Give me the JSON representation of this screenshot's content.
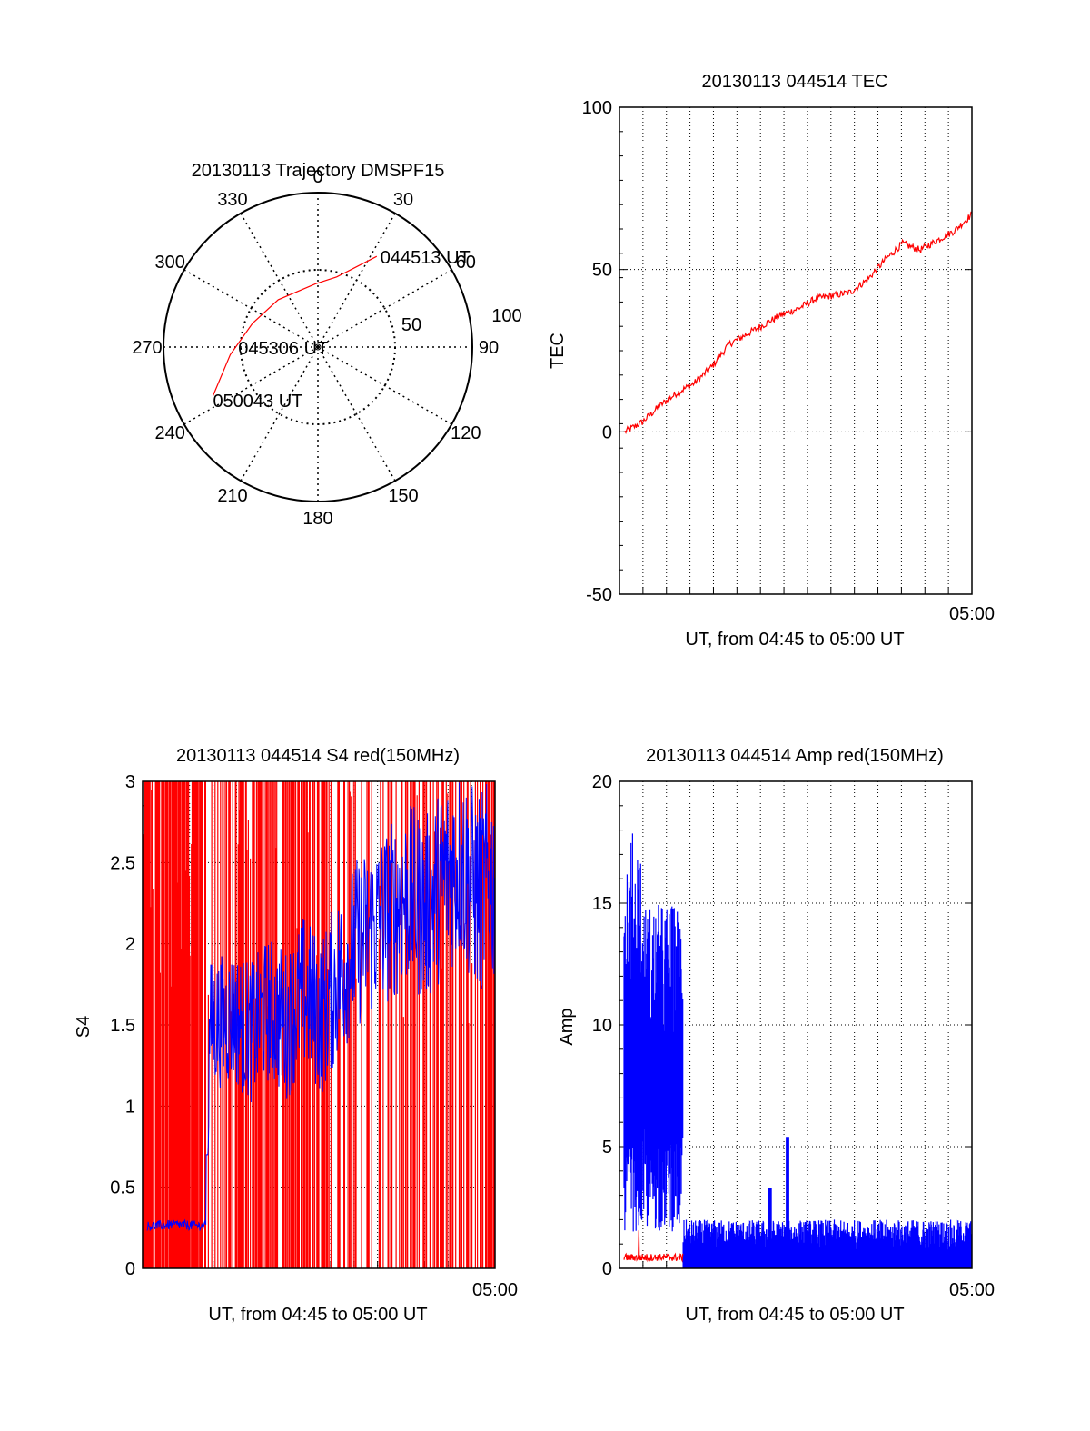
{
  "chart_data": [
    {
      "type": "polar",
      "title": "20130113 Trajectory DMSPF15",
      "angle_ticks": [
        "0",
        "30",
        "60",
        "90",
        "120",
        "150",
        "180",
        "210",
        "240",
        "270",
        "300",
        "330"
      ],
      "radial_labels": [
        "50",
        "100"
      ],
      "rlim": [
        0,
        100
      ],
      "series": [
        {
          "color": "#ff0000",
          "points": [
            {
              "azimuth": 33,
              "elevation": 20
            },
            {
              "azimuth": 15,
              "elevation": 43
            },
            {
              "azimuth": 358,
              "elevation": 49
            },
            {
              "azimuth": 320,
              "elevation": 50
            },
            {
              "azimuth": 290,
              "elevation": 45
            },
            {
              "azimuth": 265,
              "elevation": 33
            },
            {
              "azimuth": 245,
              "elevation": 15
            }
          ]
        }
      ],
      "annotations": [
        {
          "text": "044513 UT"
        },
        {
          "text": "045306 UT"
        },
        {
          "text": "050043 UT"
        }
      ]
    },
    {
      "type": "line",
      "title": "20130113 044514 TEC",
      "xlabel": "UT, from 04:45 to 05:00 UT",
      "ylabel": "TEC",
      "ylim": [
        -50,
        100
      ],
      "yticks": [
        "100",
        "50",
        "0",
        "-50"
      ],
      "xtick_labels": [
        "05:00"
      ],
      "grid": true,
      "series": [
        {
          "color": "#ff0000",
          "x": [
            0,
            0.05,
            0.1,
            0.15,
            0.2,
            0.25,
            0.3,
            0.35,
            0.4,
            0.45,
            0.5,
            0.55,
            0.6,
            0.65,
            0.7,
            0.75,
            0.8,
            0.85,
            0.9,
            0.95,
            1
          ],
          "y": [
            0,
            3,
            8,
            12,
            15,
            20,
            27,
            30,
            33,
            36,
            38,
            41,
            42,
            43,
            47,
            53,
            58,
            56,
            59,
            62,
            67
          ]
        }
      ]
    },
    {
      "type": "line",
      "title": "20130113 044514 S4 red(150MHz)",
      "xlabel": "UT, from 04:45 to 05:00 UT",
      "ylabel": "S4",
      "ylim": [
        0,
        3
      ],
      "yticks": [
        "3",
        "2.5",
        "2",
        "1.5",
        "1",
        "0.5",
        "0"
      ],
      "xtick_labels": [
        "05:00"
      ],
      "grid": true,
      "series": [
        {
          "color": "#ff0000",
          "style": "spikes between 0 and 3",
          "x_range": [
            0,
            1
          ]
        },
        {
          "color": "#0000ff",
          "x": [
            0,
            0.08,
            0.17,
            0.18,
            0.25,
            0.3,
            0.35,
            0.4,
            0.45,
            0.5,
            0.55,
            0.6,
            0.65,
            0.7,
            0.75,
            0.8,
            0.85,
            0.9,
            0.95,
            1
          ],
          "y": [
            0.26,
            0.27,
            0.26,
            1.5,
            1.55,
            1.45,
            1.6,
            1.5,
            1.7,
            1.55,
            1.8,
            2.0,
            2.1,
            2.2,
            2.3,
            2.2,
            2.4,
            2.5,
            2.3,
            2.4
          ]
        }
      ]
    },
    {
      "type": "line",
      "title": "20130113 044514 Amp red(150MHz)",
      "xlabel": "UT, from 04:45 to 05:00 UT",
      "ylabel": "Amp",
      "ylim": [
        0,
        20
      ],
      "yticks": [
        "20",
        "15",
        "10",
        "5",
        "0"
      ],
      "xtick_labels": [
        "05:00"
      ],
      "grid": true,
      "series": [
        {
          "color": "#0000ff",
          "x": [
            0,
            0.17,
            0.18,
            0.45,
            0.47,
            0.5,
            1
          ],
          "y_low": [
            3,
            3,
            0,
            0,
            0,
            0,
            0
          ],
          "y_high": [
            17,
            14,
            2,
            2,
            5.5,
            2,
            2
          ]
        },
        {
          "color": "#ff0000",
          "x": [
            0,
            0.17
          ],
          "y": [
            0.3,
            0.3
          ]
        }
      ]
    }
  ]
}
